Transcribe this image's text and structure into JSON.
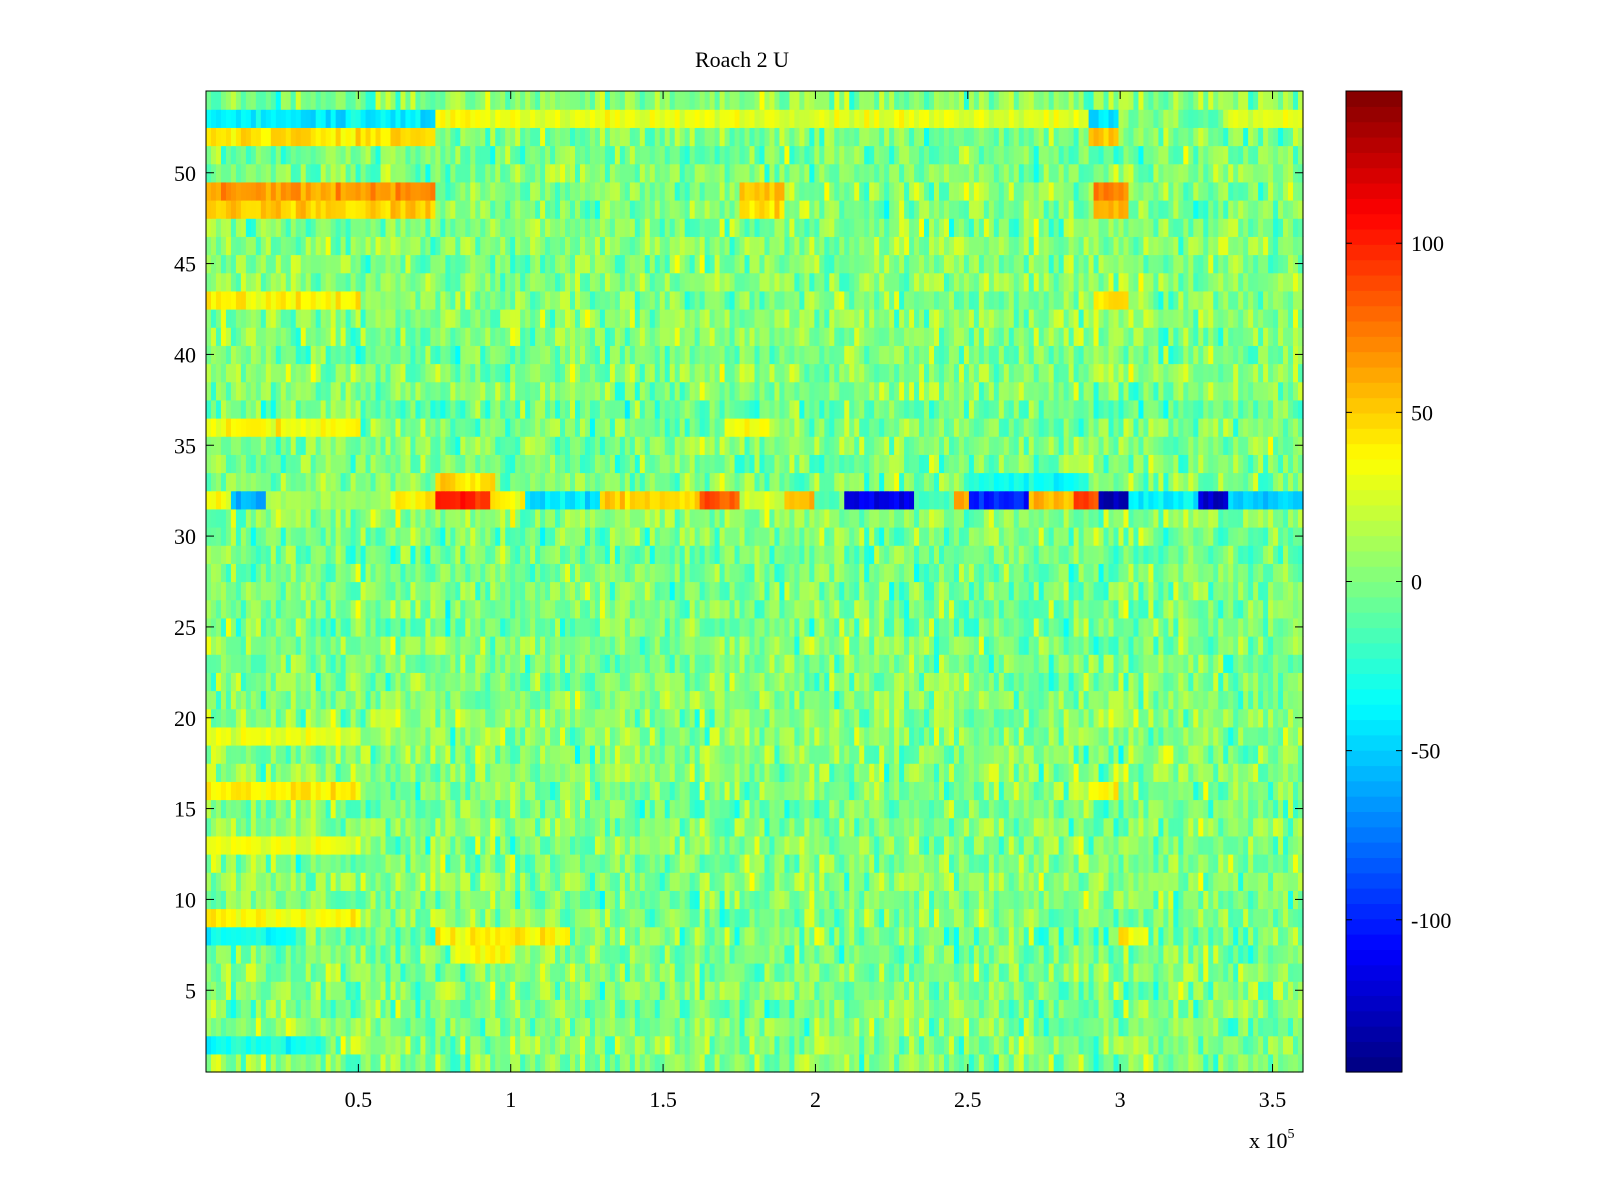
{
  "chart_data": {
    "type": "heatmap",
    "title": "Roach 2 U",
    "xlabel": "",
    "ylabel": "",
    "x_multiplier_label": "x 10",
    "x_multiplier_exponent": "5",
    "xlim": [
      0,
      3.6
    ],
    "ylim": [
      0.5,
      54.5
    ],
    "rows": 54,
    "x_ticks": [
      {
        "value": 0.5,
        "label": "0.5"
      },
      {
        "value": 1,
        "label": "1"
      },
      {
        "value": 1.5,
        "label": "1.5"
      },
      {
        "value": 2,
        "label": "2"
      },
      {
        "value": 2.5,
        "label": "2.5"
      },
      {
        "value": 3,
        "label": "3"
      },
      {
        "value": 3.5,
        "label": "3.5"
      }
    ],
    "y_ticks": [
      {
        "value": 5,
        "label": "5"
      },
      {
        "value": 10,
        "label": "10"
      },
      {
        "value": 15,
        "label": "15"
      },
      {
        "value": 20,
        "label": "20"
      },
      {
        "value": 25,
        "label": "25"
      },
      {
        "value": 30,
        "label": "30"
      },
      {
        "value": 35,
        "label": "35"
      },
      {
        "value": 40,
        "label": "40"
      },
      {
        "value": 45,
        "label": "45"
      },
      {
        "value": 50,
        "label": "50"
      }
    ],
    "colorbar": {
      "colormap": "jet",
      "range": [
        -145,
        145
      ],
      "ticks": [
        {
          "value": 100,
          "label": "100"
        },
        {
          "value": 50,
          "label": "50"
        },
        {
          "value": 0,
          "label": "0"
        },
        {
          "value": -50,
          "label": "-50"
        },
        {
          "value": -100,
          "label": "-100"
        }
      ]
    },
    "background_value_range": [
      -40,
      40
    ],
    "features": [
      {
        "row": 32,
        "description": "strong alternating band",
        "segments": [
          {
            "x": [
              0.0,
              0.08
            ],
            "value": 35
          },
          {
            "x": [
              0.08,
              0.2
            ],
            "value": -60
          },
          {
            "x": [
              0.2,
              0.6
            ],
            "value": 10
          },
          {
            "x": [
              0.6,
              0.75
            ],
            "value": 40
          },
          {
            "x": [
              0.75,
              0.93
            ],
            "value": 100
          },
          {
            "x": [
              0.93,
              1.05
            ],
            "value": 40
          },
          {
            "x": [
              1.05,
              1.3
            ],
            "value": -45
          },
          {
            "x": [
              1.3,
              1.62
            ],
            "value": 50
          },
          {
            "x": [
              1.62,
              1.75
            ],
            "value": 85
          },
          {
            "x": [
              1.75,
              1.9
            ],
            "value": 20
          },
          {
            "x": [
              1.9,
              2.0
            ],
            "value": 55
          },
          {
            "x": [
              2.0,
              2.1
            ],
            "value": -10
          },
          {
            "x": [
              2.1,
              2.33
            ],
            "value": -115
          },
          {
            "x": [
              2.33,
              2.45
            ],
            "value": -20
          },
          {
            "x": [
              2.45,
              2.5
            ],
            "value": 60
          },
          {
            "x": [
              2.5,
              2.7
            ],
            "value": -100
          },
          {
            "x": [
              2.7,
              2.85
            ],
            "value": 55
          },
          {
            "x": [
              2.85,
              2.93
            ],
            "value": 90
          },
          {
            "x": [
              2.93,
              3.02
            ],
            "value": -135
          },
          {
            "x": [
              3.02,
              3.25
            ],
            "value": -40
          },
          {
            "x": [
              3.25,
              3.35
            ],
            "value": -125
          },
          {
            "x": [
              3.35,
              3.6
            ],
            "value": -50
          }
        ]
      },
      {
        "row": 49,
        "segments": [
          {
            "x": [
              0.0,
              0.75
            ],
            "value": 65
          },
          {
            "x": [
              1.75,
              1.9
            ],
            "value": 55
          },
          {
            "x": [
              2.92,
              3.03
            ],
            "value": 70
          }
        ]
      },
      {
        "row": 48,
        "segments": [
          {
            "x": [
              0.0,
              0.75
            ],
            "value": 50
          },
          {
            "x": [
              1.75,
              1.9
            ],
            "value": 45
          },
          {
            "x": [
              2.92,
              3.03
            ],
            "value": 55
          }
        ]
      },
      {
        "row": 53,
        "segments": [
          {
            "x": [
              0.0,
              0.75
            ],
            "value": -40
          },
          {
            "x": [
              0.75,
              2.9
            ],
            "value": 30
          },
          {
            "x": [
              2.9,
              3.0
            ],
            "value": -45
          },
          {
            "x": [
              3.35,
              3.6
            ],
            "value": 25
          }
        ]
      },
      {
        "row": 52,
        "segments": [
          {
            "x": [
              0.0,
              0.75
            ],
            "value": 45
          },
          {
            "x": [
              2.9,
              3.0
            ],
            "value": 55
          }
        ]
      },
      {
        "row": 43,
        "segments": [
          {
            "x": [
              0.0,
              0.5
            ],
            "value": 40
          },
          {
            "x": [
              2.92,
              3.03
            ],
            "value": 45
          }
        ]
      },
      {
        "row": 36,
        "segments": [
          {
            "x": [
              0.0,
              0.5
            ],
            "value": 35
          },
          {
            "x": [
              1.7,
              1.85
            ],
            "value": 35
          }
        ]
      },
      {
        "row": 33,
        "segments": [
          {
            "x": [
              0.75,
              0.95
            ],
            "value": 45
          },
          {
            "x": [
              2.5,
              2.9
            ],
            "value": -30
          }
        ]
      },
      {
        "row": 16,
        "segments": [
          {
            "x": [
              0.0,
              0.5
            ],
            "value": 40
          },
          {
            "x": [
              2.9,
              3.0
            ],
            "value": 40
          }
        ]
      },
      {
        "row": 19,
        "segments": [
          {
            "x": [
              0.0,
              0.5
            ],
            "value": 30
          }
        ]
      },
      {
        "row": 13,
        "segments": [
          {
            "x": [
              0.0,
              0.5
            ],
            "value": 30
          }
        ]
      },
      {
        "row": 9,
        "segments": [
          {
            "x": [
              0.0,
              0.5
            ],
            "value": 35
          }
        ]
      },
      {
        "row": 8,
        "segments": [
          {
            "x": [
              0.0,
              0.3
            ],
            "value": -35
          },
          {
            "x": [
              0.75,
              1.2
            ],
            "value": 40
          },
          {
            "x": [
              3.0,
              3.1
            ],
            "value": 35
          }
        ]
      },
      {
        "row": 7,
        "segments": [
          {
            "x": [
              0.8,
              1.0
            ],
            "value": 35
          }
        ]
      },
      {
        "row": 2,
        "segments": [
          {
            "x": [
              0.0,
              0.4
            ],
            "value": -30
          }
        ]
      }
    ]
  }
}
